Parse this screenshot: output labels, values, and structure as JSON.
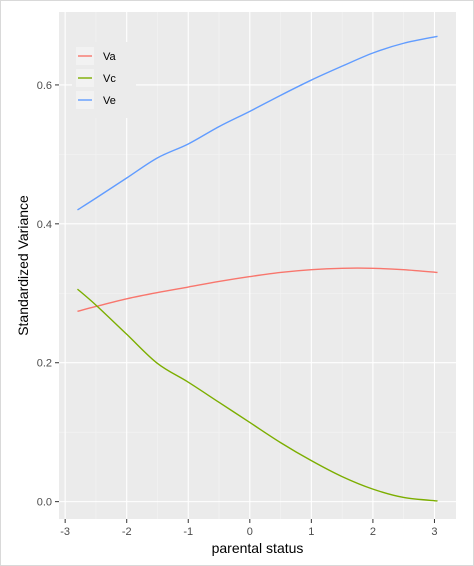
{
  "chart_data": {
    "type": "line",
    "title": "",
    "xlabel": "parental status",
    "ylabel": "Standardized Variance",
    "xlim": [
      -3.1,
      3.35
    ],
    "ylim": [
      -0.025,
      0.705
    ],
    "x_ticks": [
      -3,
      -2,
      -1,
      0,
      1,
      2,
      3
    ],
    "x_tick_labels": [
      "-3",
      "-2",
      "-1",
      "0",
      "1",
      "2",
      "3"
    ],
    "y_ticks": [
      0.0,
      0.2,
      0.4,
      0.6
    ],
    "y_tick_labels": [
      "0.0",
      "0.2",
      "0.4",
      "0.6"
    ],
    "grid": true,
    "legend_position": "top-left",
    "colors": {
      "panel": "#ebebeb",
      "grid_major": "#ffffff",
      "grid_minor": "#f4f4f4"
    },
    "series": [
      {
        "name": "Va",
        "color": "#F8766D",
        "x": [
          -2.8,
          -2.5,
          -2,
          -1.5,
          -1,
          -0.5,
          0,
          0.5,
          1,
          1.5,
          2,
          2.5,
          3.05
        ],
        "y": [
          0.274,
          0.281,
          0.292,
          0.301,
          0.309,
          0.317,
          0.324,
          0.33,
          0.334,
          0.336,
          0.336,
          0.334,
          0.33
        ]
      },
      {
        "name": "Vc",
        "color": "#7CAE00",
        "x": [
          -2.8,
          -2.5,
          -2,
          -1.5,
          -1,
          -0.5,
          0,
          0.5,
          1,
          1.5,
          2,
          2.5,
          3.05
        ],
        "y": [
          0.306,
          0.283,
          0.241,
          0.199,
          0.172,
          0.143,
          0.114,
          0.085,
          0.059,
          0.036,
          0.018,
          0.006,
          0.001
        ]
      },
      {
        "name": "Ve",
        "color": "#619CFF",
        "x": [
          -2.8,
          -2.5,
          -2,
          -1.5,
          -1,
          -0.5,
          0,
          0.5,
          1,
          1.5,
          2,
          2.5,
          3.05
        ],
        "y": [
          0.42,
          0.437,
          0.466,
          0.495,
          0.515,
          0.54,
          0.562,
          0.585,
          0.607,
          0.627,
          0.646,
          0.66,
          0.67
        ]
      }
    ]
  }
}
